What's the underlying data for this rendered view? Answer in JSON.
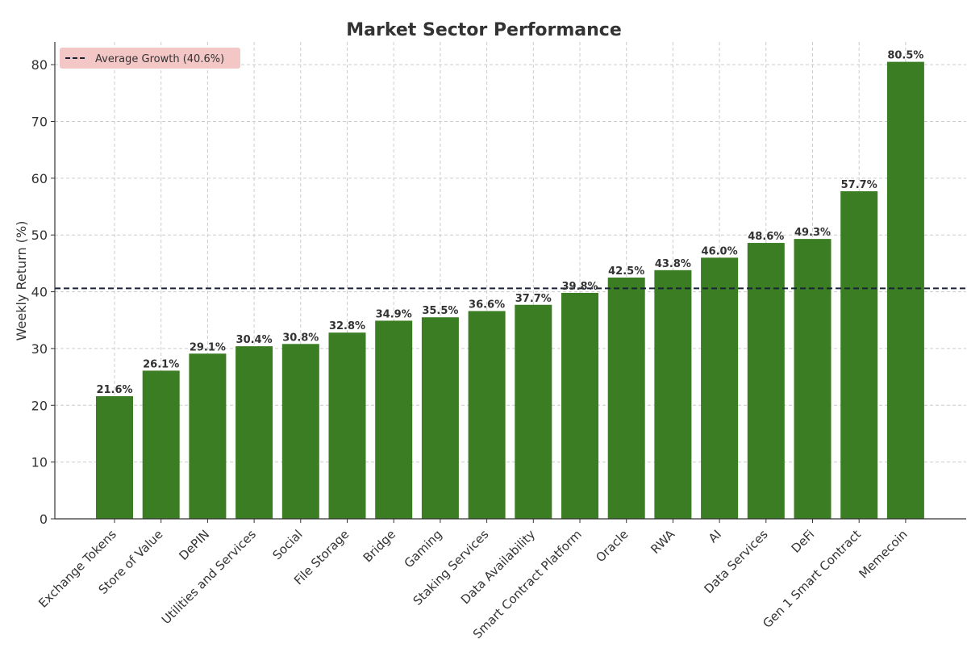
{
  "chart_data": {
    "type": "bar",
    "title": "Market Sector Performance",
    "xlabel": "",
    "ylabel": "Weekly Return (%)",
    "ylim": [
      0,
      84
    ],
    "yticks": [
      0,
      10,
      20,
      30,
      40,
      50,
      60,
      70,
      80
    ],
    "grid": true,
    "categories": [
      "Exchange Tokens",
      "Store of Value",
      "DePIN",
      "Utilities and Services",
      "Social",
      "File Storage",
      "Bridge",
      "Gaming",
      "Staking Services",
      "Data Availability",
      "Smart Contract Platform",
      "Oracle",
      "RWA",
      "AI",
      "Data Services",
      "DeFi",
      "Gen 1 Smart Contract",
      "Memecoin"
    ],
    "values": [
      21.6,
      26.1,
      29.1,
      30.4,
      30.8,
      32.8,
      34.9,
      35.5,
      36.6,
      37.7,
      39.8,
      42.5,
      43.8,
      46.0,
      48.6,
      49.3,
      57.7,
      80.5
    ],
    "data_labels": [
      "21.6%",
      "26.1%",
      "29.1%",
      "30.4%",
      "30.8%",
      "32.8%",
      "34.9%",
      "35.5%",
      "36.6%",
      "37.7%",
      "39.8%",
      "42.5%",
      "43.8%",
      "46.0%",
      "48.6%",
      "49.3%",
      "57.7%",
      "80.5%"
    ],
    "bar_color": "#3a7d22",
    "reference_line": {
      "value": 40.6,
      "label": "Average Growth (40.6%)",
      "style": "dashed",
      "color": "#1a2238"
    },
    "legend": {
      "placement": "top-left",
      "background": "#f4c7c7"
    }
  }
}
